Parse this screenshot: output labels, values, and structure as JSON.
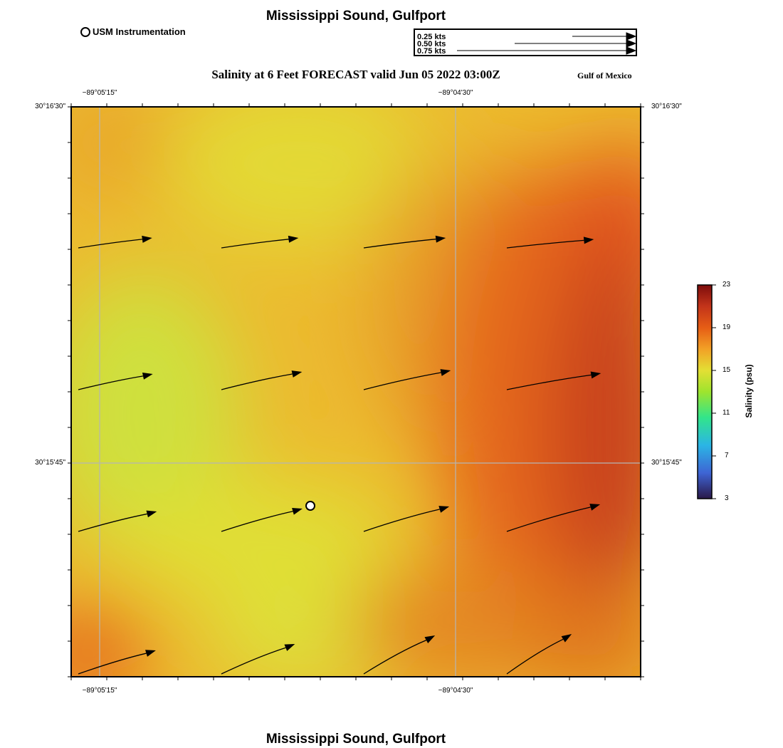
{
  "header": {
    "title": "Mississippi Sound, Gulfport",
    "subtitle": "Salinity at 6 Feet FORECAST valid Jun 05 2022 03:00Z",
    "region_label": "Gulf of Mexico"
  },
  "footer": {
    "title": "Mississippi Sound, Gulfport"
  },
  "station_legend": {
    "label": "USM Instrumentation"
  },
  "speed_key": {
    "labels": [
      "0.25 kts",
      "0.50 kts",
      "0.75 kts"
    ]
  },
  "axes": {
    "longitude_ticks": [
      "−89°05'15\"",
      "−89°04'30\""
    ],
    "latitude_ticks": [
      "30°16'30\"",
      "30°15'45\""
    ]
  },
  "colorbar": {
    "label": "Salinity (psu)",
    "ticks": [
      "23",
      "19",
      "15",
      "11",
      "7",
      "3"
    ],
    "min": 3,
    "max": 23,
    "colors": [
      "#2a1848",
      "#3e64d4",
      "#2bb5e5",
      "#32e58a",
      "#9ee42e",
      "#e3df34",
      "#f2a126",
      "#e65d15",
      "#c3341a",
      "#7d0c0c"
    ]
  },
  "map_data": {
    "variable": "Salinity",
    "unit": "psu",
    "station": {
      "name": "USM Instrumentation",
      "lon_frac": 0.42,
      "lat_frac": 0.7
    },
    "current_vectors": [
      {
        "row": 0,
        "col": 0,
        "speed_kts": 0.46
      },
      {
        "row": 0,
        "col": 1,
        "speed_kts": 0.48
      },
      {
        "row": 0,
        "col": 2,
        "speed_kts": 0.51
      },
      {
        "row": 0,
        "col": 3,
        "speed_kts": 0.54
      },
      {
        "row": 1,
        "col": 0,
        "speed_kts": 0.47
      },
      {
        "row": 1,
        "col": 1,
        "speed_kts": 0.51
      },
      {
        "row": 1,
        "col": 2,
        "speed_kts": 0.55
      },
      {
        "row": 1,
        "col": 3,
        "speed_kts": 0.59
      },
      {
        "row": 2,
        "col": 0,
        "speed_kts": 0.5
      },
      {
        "row": 2,
        "col": 1,
        "speed_kts": 0.52
      },
      {
        "row": 2,
        "col": 2,
        "speed_kts": 0.55
      },
      {
        "row": 2,
        "col": 3,
        "speed_kts": 0.6
      },
      {
        "row": 3,
        "col": 0,
        "speed_kts": 0.5
      },
      {
        "row": 3,
        "col": 1,
        "speed_kts": 0.49
      },
      {
        "row": 3,
        "col": 2,
        "speed_kts": 0.5
      },
      {
        "row": 3,
        "col": 3,
        "speed_kts": 0.47
      }
    ]
  }
}
